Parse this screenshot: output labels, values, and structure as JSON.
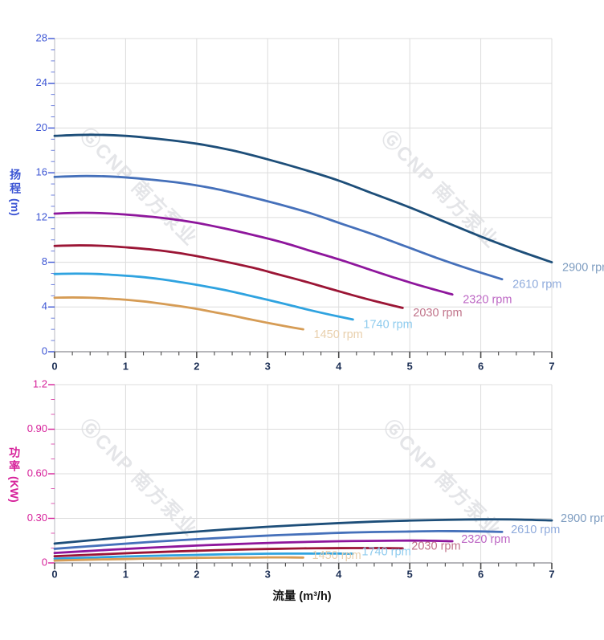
{
  "watermark": {
    "text": "ⒼCNP 南方泵业"
  },
  "chart_data": [
    {
      "id": "head",
      "type": "line",
      "ylabel_cjk": "扬程",
      "ylabel_unit": "(m)",
      "xlabel": "流量 (m³/h)",
      "xlim": [
        0,
        7
      ],
      "ylim": [
        0,
        28
      ],
      "x_major_step": 1,
      "x_minor_step": 0.25,
      "y_major_step": 4,
      "y_minor_step": 1,
      "grid": true,
      "legend_position": "curve-ends",
      "axis_color": "#3c55d4",
      "x_tick_labels": [
        "0",
        "1",
        "2",
        "3",
        "4",
        "5",
        "6",
        "7"
      ],
      "y_tick_labels": [
        "0",
        "4",
        "8",
        "12",
        "16",
        "20",
        "24",
        "28"
      ],
      "series": [
        {
          "name": "2900 rpm",
          "rpm": 2900,
          "color": "#1d4e79",
          "label_color": "#7d9cc0",
          "points": [
            [
              0,
              19.3
            ],
            [
              0.5,
              19.4
            ],
            [
              1,
              19.3
            ],
            [
              1.5,
              19.0
            ],
            [
              2,
              18.6
            ],
            [
              2.5,
              18.0
            ],
            [
              3,
              17.2
            ],
            [
              3.5,
              16.3
            ],
            [
              4,
              15.3
            ],
            [
              4.5,
              14.1
            ],
            [
              5,
              12.9
            ],
            [
              5.5,
              11.6
            ],
            [
              6,
              10.3
            ],
            [
              6.5,
              9.1
            ],
            [
              7,
              8.0
            ]
          ]
        },
        {
          "name": "2610 rpm",
          "rpm": 2610,
          "color": "#4570ba",
          "label_color": "#8fabdc",
          "points": [
            [
              0,
              15.63
            ],
            [
              0.45,
              15.71
            ],
            [
              0.9,
              15.63
            ],
            [
              1.35,
              15.39
            ],
            [
              1.8,
              15.07
            ],
            [
              2.25,
              14.58
            ],
            [
              2.7,
              13.93
            ],
            [
              3.15,
              13.2
            ],
            [
              3.6,
              12.39
            ],
            [
              4.05,
              11.42
            ],
            [
              4.5,
              10.45
            ],
            [
              4.95,
              9.4
            ],
            [
              5.4,
              8.34
            ],
            [
              5.85,
              7.37
            ],
            [
              6.3,
              6.48
            ]
          ]
        },
        {
          "name": "2320 rpm",
          "rpm": 2320,
          "color": "#8e169c",
          "label_color": "#bd67c4",
          "points": [
            [
              0,
              12.35
            ],
            [
              0.4,
              12.42
            ],
            [
              0.8,
              12.35
            ],
            [
              1.2,
              12.16
            ],
            [
              1.6,
              11.9
            ],
            [
              2,
              11.52
            ],
            [
              2.4,
              11.01
            ],
            [
              2.8,
              10.43
            ],
            [
              3.2,
              9.79
            ],
            [
              3.6,
              9.02
            ],
            [
              4,
              8.26
            ],
            [
              4.4,
              7.42
            ],
            [
              4.8,
              6.59
            ],
            [
              5.2,
              5.82
            ],
            [
              5.6,
              5.12
            ]
          ]
        },
        {
          "name": "2030 rpm",
          "rpm": 2030,
          "color": "#9b1535",
          "label_color": "#c0738a",
          "points": [
            [
              0,
              9.46
            ],
            [
              0.35,
              9.51
            ],
            [
              0.7,
              9.46
            ],
            [
              1.05,
              9.31
            ],
            [
              1.4,
              9.11
            ],
            [
              1.75,
              8.82
            ],
            [
              2.1,
              8.43
            ],
            [
              2.45,
              7.99
            ],
            [
              2.8,
              7.5
            ],
            [
              3.15,
              6.91
            ],
            [
              3.5,
              6.32
            ],
            [
              3.85,
              5.68
            ],
            [
              4.2,
              5.05
            ],
            [
              4.55,
              4.46
            ],
            [
              4.9,
              3.92
            ]
          ]
        },
        {
          "name": "1740 rpm",
          "rpm": 1740,
          "color": "#2fa3e0",
          "label_color": "#8ecbee",
          "points": [
            [
              0,
              6.95
            ],
            [
              0.3,
              6.98
            ],
            [
              0.6,
              6.95
            ],
            [
              0.9,
              6.84
            ],
            [
              1.2,
              6.7
            ],
            [
              1.5,
              6.48
            ],
            [
              1.8,
              6.19
            ],
            [
              2.1,
              5.87
            ],
            [
              2.4,
              5.51
            ],
            [
              2.7,
              5.08
            ],
            [
              3,
              4.64
            ],
            [
              3.3,
              4.18
            ],
            [
              3.6,
              3.71
            ],
            [
              3.9,
              3.28
            ],
            [
              4.2,
              2.88
            ]
          ]
        },
        {
          "name": "1450 rpm",
          "rpm": 1450,
          "color": "#d69c55",
          "label_color": "#e9d0ad",
          "points": [
            [
              0,
              4.83
            ],
            [
              0.25,
              4.85
            ],
            [
              0.5,
              4.83
            ],
            [
              0.75,
              4.75
            ],
            [
              1,
              4.65
            ],
            [
              1.25,
              4.5
            ],
            [
              1.5,
              4.3
            ],
            [
              1.75,
              4.08
            ],
            [
              2,
              3.83
            ],
            [
              2.25,
              3.53
            ],
            [
              2.5,
              3.23
            ],
            [
              2.75,
              2.9
            ],
            [
              3,
              2.58
            ],
            [
              3.25,
              2.28
            ],
            [
              3.5,
              2.0
            ]
          ]
        }
      ]
    },
    {
      "id": "power",
      "type": "line",
      "ylabel_cjk": "功率",
      "ylabel_unit": "(KW)",
      "xlabel": "流量 (m³/h)",
      "xlim": [
        0,
        7
      ],
      "ylim": [
        0,
        1.2
      ],
      "x_major_step": 1,
      "x_minor_step": 0.25,
      "y_major_step": 0.3,
      "y_minor_step": 0.1,
      "grid": true,
      "legend_position": "curve-ends",
      "axis_color": "#d6219a",
      "x_tick_labels": [
        "0",
        "1",
        "2",
        "3",
        "4",
        "5",
        "6",
        "7"
      ],
      "y_tick_labels": [
        "0",
        "0.30",
        "0.60",
        "0.90",
        "1.2"
      ],
      "series": [
        {
          "name": "2900 rpm",
          "rpm": 2900,
          "color": "#1d4e79",
          "label_color": "#7d9cc0",
          "points": [
            [
              0,
              0.13
            ],
            [
              0.5,
              0.152
            ],
            [
              1,
              0.173
            ],
            [
              1.5,
              0.193
            ],
            [
              2,
              0.211
            ],
            [
              2.5,
              0.228
            ],
            [
              3,
              0.243
            ],
            [
              3.5,
              0.256
            ],
            [
              4,
              0.268
            ],
            [
              4.5,
              0.278
            ],
            [
              5,
              0.285
            ],
            [
              5.5,
              0.29
            ],
            [
              6,
              0.293
            ],
            [
              6.5,
              0.292
            ],
            [
              7,
              0.286
            ]
          ]
        },
        {
          "name": "2610 rpm",
          "rpm": 2610,
          "color": "#4570ba",
          "label_color": "#8fabdc",
          "points": [
            [
              0,
              0.095
            ],
            [
              0.45,
              0.111
            ],
            [
              0.9,
              0.126
            ],
            [
              1.35,
              0.141
            ],
            [
              1.8,
              0.154
            ],
            [
              2.25,
              0.166
            ],
            [
              2.7,
              0.177
            ],
            [
              3.15,
              0.187
            ],
            [
              3.6,
              0.195
            ],
            [
              4.05,
              0.203
            ],
            [
              4.5,
              0.208
            ],
            [
              4.95,
              0.211
            ],
            [
              5.4,
              0.214
            ],
            [
              5.85,
              0.213
            ],
            [
              6.3,
              0.209
            ]
          ]
        },
        {
          "name": "2320 rpm",
          "rpm": 2320,
          "color": "#8e169c",
          "label_color": "#bd67c4",
          "points": [
            [
              0,
              0.067
            ],
            [
              0.4,
              0.078
            ],
            [
              0.8,
              0.089
            ],
            [
              1.2,
              0.099
            ],
            [
              1.6,
              0.108
            ],
            [
              2,
              0.117
            ],
            [
              2.4,
              0.124
            ],
            [
              2.8,
              0.131
            ],
            [
              3.2,
              0.137
            ],
            [
              3.6,
              0.142
            ],
            [
              4,
              0.146
            ],
            [
              4.4,
              0.148
            ],
            [
              4.8,
              0.15
            ],
            [
              5.2,
              0.15
            ],
            [
              5.6,
              0.146
            ]
          ]
        },
        {
          "name": "2030 rpm",
          "rpm": 2030,
          "color": "#9b1535",
          "label_color": "#c0738a",
          "points": [
            [
              0,
              0.045
            ],
            [
              0.35,
              0.052
            ],
            [
              0.7,
              0.059
            ],
            [
              1.05,
              0.066
            ],
            [
              1.4,
              0.072
            ],
            [
              1.75,
              0.078
            ],
            [
              2.1,
              0.083
            ],
            [
              2.45,
              0.088
            ],
            [
              2.8,
              0.092
            ],
            [
              3.15,
              0.095
            ],
            [
              3.5,
              0.098
            ],
            [
              3.85,
              0.099
            ],
            [
              4.2,
              0.1
            ],
            [
              4.55,
              0.1
            ],
            [
              4.9,
              0.098
            ]
          ]
        },
        {
          "name": "1740 rpm",
          "rpm": 1740,
          "color": "#2fa3e0",
          "label_color": "#8ecbee",
          "points": [
            [
              0,
              0.028
            ],
            [
              0.3,
              0.033
            ],
            [
              0.6,
              0.037
            ],
            [
              0.9,
              0.042
            ],
            [
              1.2,
              0.046
            ],
            [
              1.5,
              0.049
            ],
            [
              1.8,
              0.052
            ],
            [
              2.1,
              0.055
            ],
            [
              2.4,
              0.058
            ],
            [
              2.7,
              0.06
            ],
            [
              3,
              0.062
            ],
            [
              3.3,
              0.063
            ],
            [
              3.6,
              0.063
            ],
            [
              3.9,
              0.063
            ],
            [
              4.2,
              0.062
            ]
          ]
        },
        {
          "name": "1450 rpm",
          "rpm": 1450,
          "color": "#d69c55",
          "label_color": "#e9d0ad",
          "points": [
            [
              0,
              0.016
            ],
            [
              0.25,
              0.019
            ],
            [
              0.5,
              0.022
            ],
            [
              0.75,
              0.024
            ],
            [
              1,
              0.026
            ],
            [
              1.25,
              0.029
            ],
            [
              1.5,
              0.03
            ],
            [
              1.75,
              0.032
            ],
            [
              2,
              0.034
            ],
            [
              2.25,
              0.035
            ],
            [
              2.5,
              0.036
            ],
            [
              2.75,
              0.036
            ],
            [
              3,
              0.037
            ],
            [
              3.25,
              0.037
            ],
            [
              3.5,
              0.036
            ]
          ]
        }
      ]
    }
  ]
}
